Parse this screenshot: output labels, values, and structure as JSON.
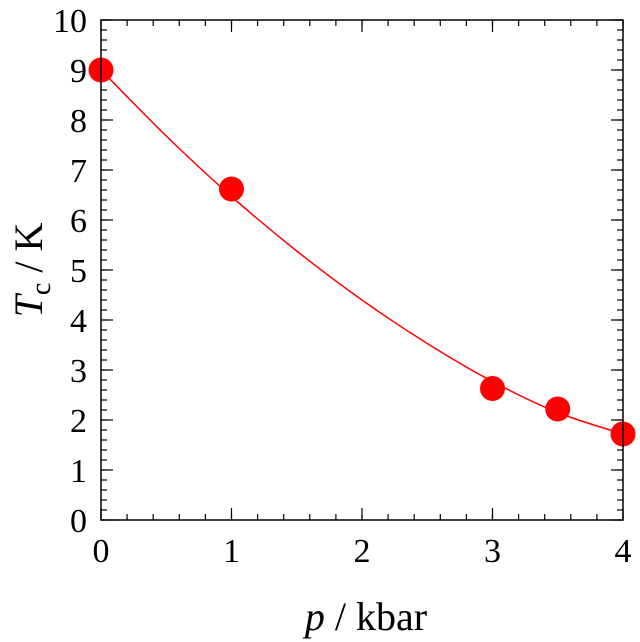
{
  "chart_data": {
    "type": "scatter",
    "xlabel_var": "p",
    "xlabel_unit": " / kbar",
    "ylabel_var": "T",
    "ylabel_sub": "c",
    "ylabel_unit": " / K",
    "xlim": [
      0,
      4
    ],
    "ylim": [
      0,
      10
    ],
    "xticks": [
      0,
      1,
      2,
      3,
      4
    ],
    "yticks": [
      0,
      1,
      2,
      3,
      4,
      5,
      6,
      7,
      8,
      9,
      10
    ],
    "x_minor_step": 0.2,
    "y_minor_step": 0.2,
    "grid": false,
    "series": [
      {
        "x": [
          0,
          1,
          3,
          3.5,
          4
        ],
        "y": [
          9.0,
          6.62,
          2.63,
          2.22,
          1.72
        ],
        "color": "#ff0000"
      }
    ],
    "fit_curve": {
      "x": [
        0,
        0.5,
        1,
        1.5,
        2,
        2.5,
        3,
        3.5,
        4
      ],
      "y": [
        9.0,
        7.68,
        6.47,
        5.38,
        4.4,
        3.53,
        2.77,
        2.15,
        1.72
      ],
      "color": "#ff0000"
    }
  }
}
